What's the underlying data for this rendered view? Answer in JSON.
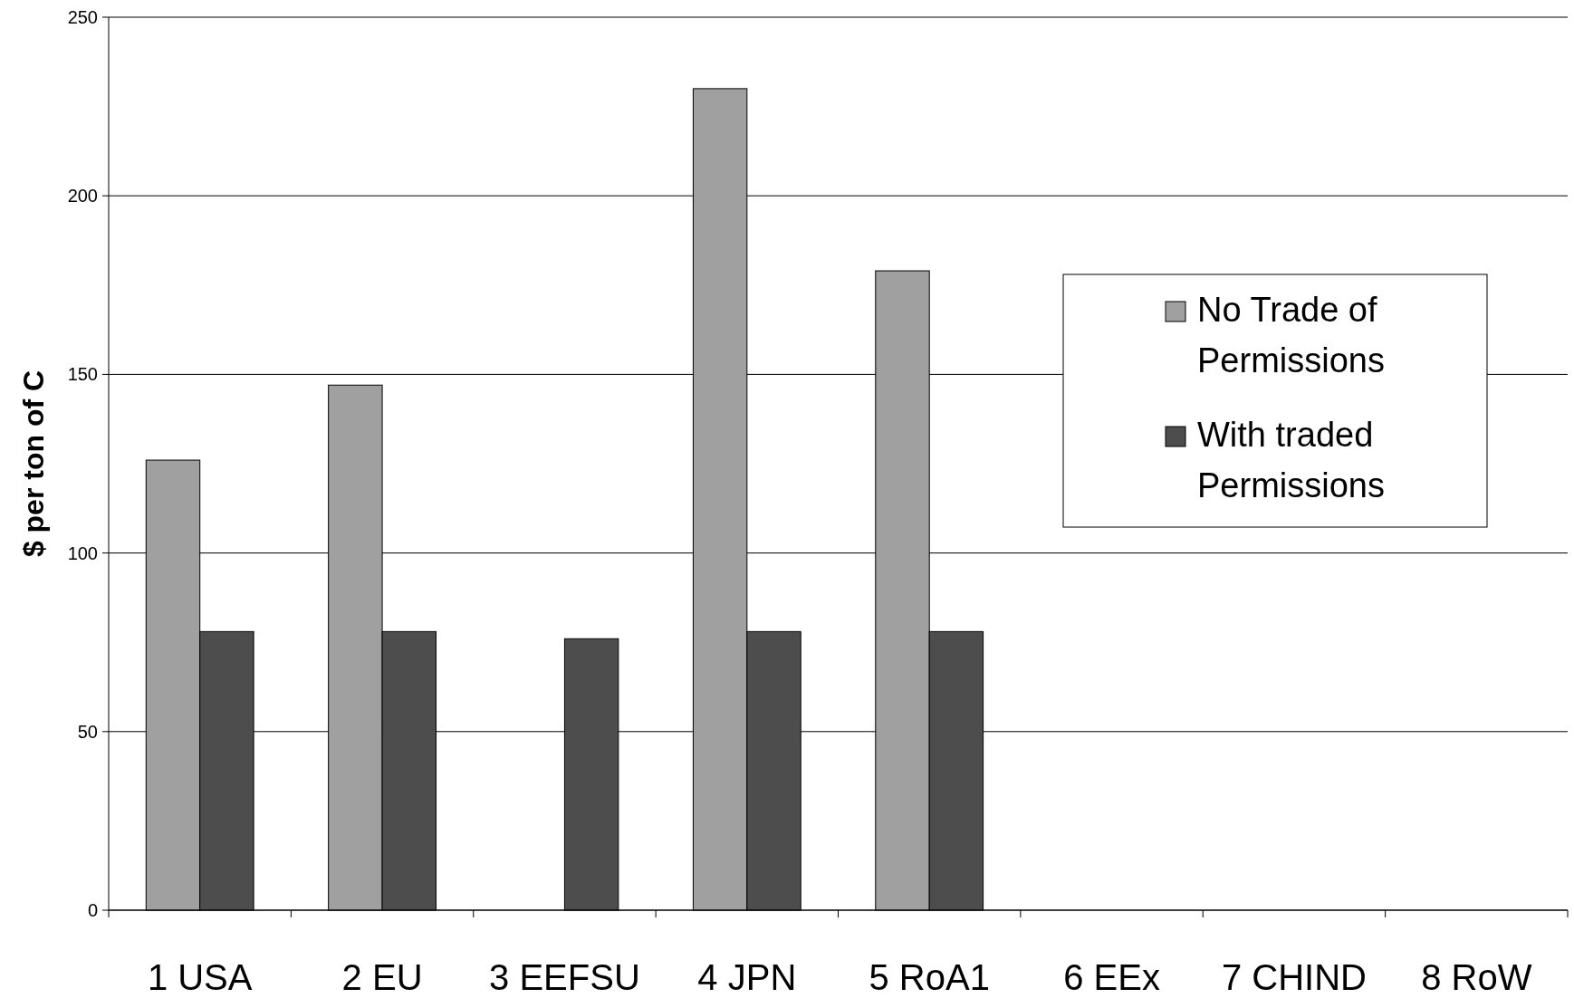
{
  "chart_data": {
    "type": "bar",
    "ylabel": "$ per ton of C",
    "categories": [
      "1 USA",
      "2 EU",
      "3 EEFSU",
      "4 JPN",
      "5 RoA1",
      "6 EEx",
      "7 CHIND",
      "8 RoW"
    ],
    "series": [
      {
        "name": "No Trade of Permissions",
        "color": "#a0a0a0",
        "values": [
          126,
          147,
          null,
          230,
          179,
          null,
          null,
          null
        ]
      },
      {
        "name": "With traded Permissions",
        "color": "#4d4d4d",
        "values": [
          78,
          78,
          76,
          78,
          78,
          null,
          null,
          null
        ]
      }
    ],
    "ylim": [
      0,
      250
    ],
    "yticks": [
      0,
      50,
      100,
      150,
      200,
      250
    ],
    "grid": "y",
    "legend": "right"
  }
}
